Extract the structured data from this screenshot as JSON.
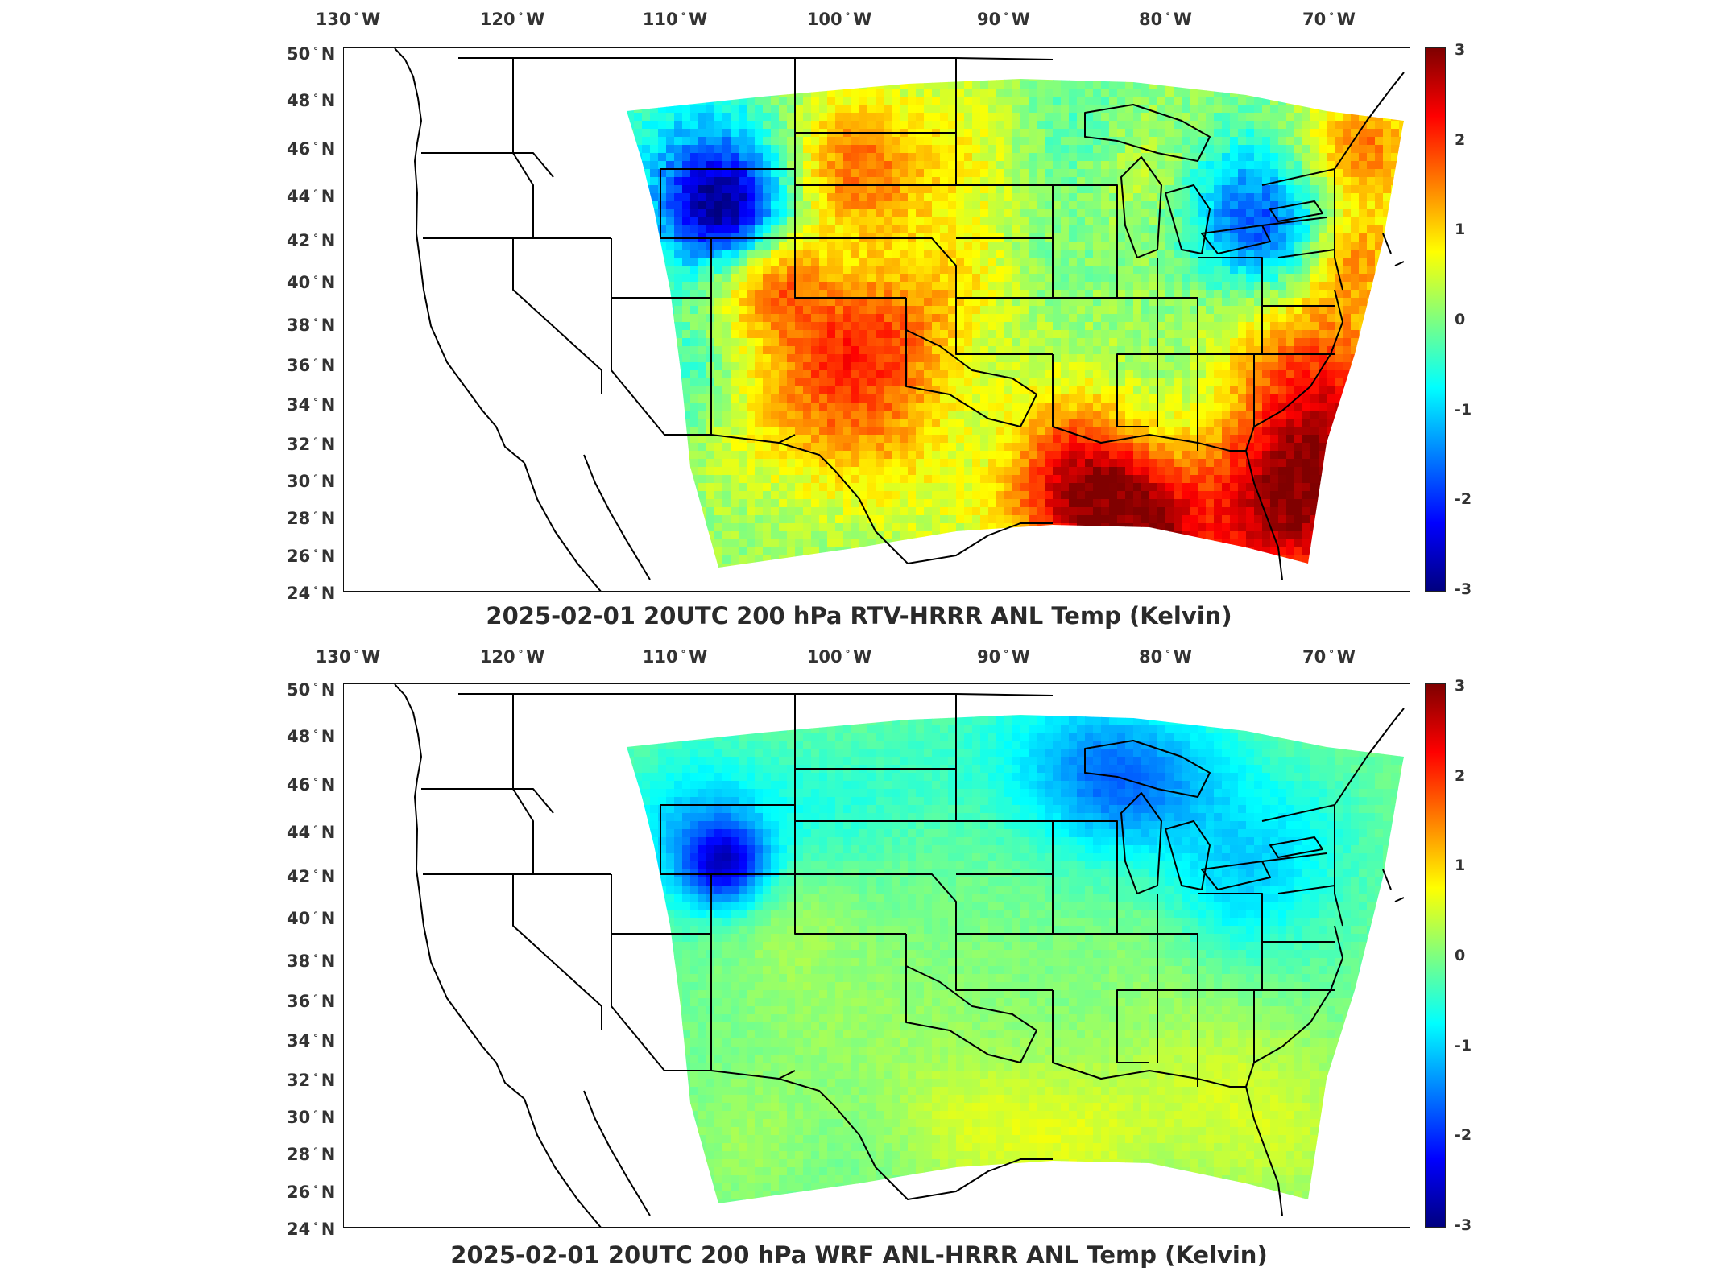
{
  "figure": {
    "panels": [
      {
        "id": "top",
        "title": "2025-02-01 20UTC 200 hPa RTV-HRRR ANL Temp (Kelvin)",
        "variant": "rtv"
      },
      {
        "id": "bottom",
        "title": "2025-02-01 20UTC 200 hPa WRF ANL-HRRR ANL Temp (Kelvin)",
        "variant": "wrf"
      }
    ],
    "lon_ticks": [
      "130",
      "120",
      "110",
      "100",
      "90",
      "80",
      "70"
    ],
    "lon_hemisphere": "W",
    "lat_ticks": [
      "50",
      "48",
      "46",
      "44",
      "42",
      "40",
      "38",
      "36",
      "34",
      "32",
      "30",
      "28",
      "26",
      "24"
    ],
    "lat_hemisphere": "N",
    "colorbar": {
      "ticks": [
        "3",
        "2",
        "1",
        "0",
        "-1",
        "-2",
        "-3"
      ],
      "colormap": "jet",
      "range": [
        -3,
        3
      ]
    },
    "colors": {
      "border_lines": "#000000",
      "frame": "#111111"
    }
  }
}
